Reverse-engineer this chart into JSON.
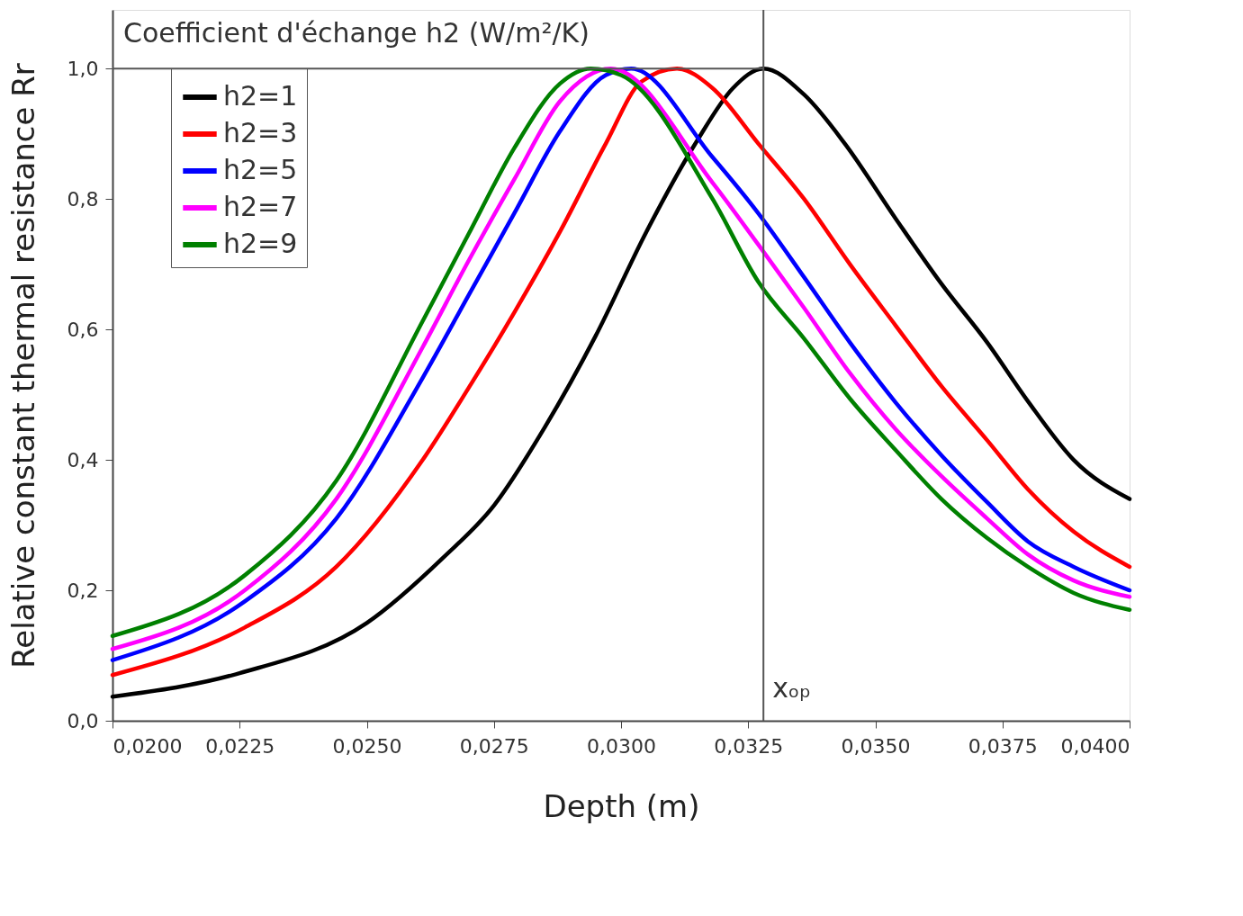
{
  "chart_data": {
    "type": "line",
    "title": "Coefficient d'échange h2 (W/m²/K)",
    "xlabel": "Depth (m)",
    "ylabel": "Relative constant thermal resistance Rr",
    "xlim": [
      0.02,
      0.04
    ],
    "ylim": [
      0,
      1.09
    ],
    "xticks": [
      {
        "value": 0.02,
        "label": "0,0200"
      },
      {
        "value": 0.0225,
        "label": "0,0225"
      },
      {
        "value": 0.025,
        "label": "0,0250"
      },
      {
        "value": 0.0275,
        "label": "0,0275"
      },
      {
        "value": 0.03,
        "label": "0,0300"
      },
      {
        "value": 0.0325,
        "label": "0,0325"
      },
      {
        "value": 0.035,
        "label": "0,0350"
      },
      {
        "value": 0.0375,
        "label": "0,0375"
      },
      {
        "value": 0.04,
        "label": "0,0400"
      }
    ],
    "yticks": [
      {
        "value": 0,
        "label": "0,0"
      },
      {
        "value": 0.2,
        "label": "0,2"
      },
      {
        "value": 0.4,
        "label": "0,4"
      },
      {
        "value": 0.6,
        "label": "0,6"
      },
      {
        "value": 0.8,
        "label": "0,8"
      },
      {
        "value": 1.0,
        "label": "1,0"
      }
    ],
    "grid": false,
    "legend": "top left",
    "line_style": "solid",
    "marker": "none",
    "ref_lines": [
      {
        "axis": "x",
        "value": 0.0328,
        "label": "xₒₚ",
        "color": "#555555"
      },
      {
        "axis": "y",
        "value": 1.0,
        "color": "#555555"
      }
    ],
    "series": [
      {
        "name": "h2=1",
        "color": "#000000",
        "x": [
          0.02,
          0.0225,
          0.025,
          0.0265,
          0.0275,
          0.0285,
          0.0295,
          0.0305,
          0.0315,
          0.0322,
          0.0328,
          0.0336,
          0.0344,
          0.0354,
          0.0363,
          0.0372,
          0.038,
          0.0389,
          0.04
        ],
        "values": [
          0.037,
          0.073,
          0.15,
          0.25,
          0.33,
          0.45,
          0.59,
          0.75,
          0.89,
          0.97,
          1.0,
          0.96,
          0.885,
          0.77,
          0.67,
          0.58,
          0.49,
          0.4,
          0.34
        ]
      },
      {
        "name": "h2=3",
        "color": "#ff0000",
        "x": [
          0.02,
          0.0226,
          0.0244,
          0.0261,
          0.027,
          0.0279,
          0.0288,
          0.0297,
          0.0304,
          0.0311,
          0.0318,
          0.0327,
          0.0336,
          0.0345,
          0.0354,
          0.0363,
          0.0372,
          0.038,
          0.0389,
          0.04
        ],
        "values": [
          0.07,
          0.143,
          0.236,
          0.4,
          0.51,
          0.626,
          0.75,
          0.885,
          0.98,
          1.0,
          0.97,
          0.885,
          0.8,
          0.7,
          0.606,
          0.513,
          0.43,
          0.355,
          0.29,
          0.236
        ]
      },
      {
        "name": "h2=5",
        "color": "#0000ff",
        "x": [
          0.02,
          0.0226,
          0.0244,
          0.0261,
          0.027,
          0.0279,
          0.0288,
          0.0297,
          0.0302,
          0.0318,
          0.0327,
          0.0336,
          0.0345,
          0.0354,
          0.0363,
          0.0372,
          0.038,
          0.0389,
          0.04
        ],
        "values": [
          0.093,
          0.183,
          0.31,
          0.526,
          0.652,
          0.778,
          0.904,
          0.99,
          1.0,
          0.864,
          0.778,
          0.68,
          0.58,
          0.488,
          0.407,
          0.335,
          0.275,
          0.236,
          0.2
        ]
      },
      {
        "name": "h2=7",
        "color": "#ff00ff",
        "x": [
          0.02,
          0.0226,
          0.0244,
          0.0261,
          0.027,
          0.0279,
          0.0288,
          0.0298,
          0.0318,
          0.0327,
          0.0336,
          0.0345,
          0.0354,
          0.0363,
          0.0372,
          0.038,
          0.0389,
          0.04
        ],
        "values": [
          0.11,
          0.2,
          0.34,
          0.573,
          0.705,
          0.83,
          0.95,
          1.0,
          0.825,
          0.73,
          0.633,
          0.533,
          0.447,
          0.375,
          0.31,
          0.255,
          0.215,
          0.19
        ]
      },
      {
        "name": "h2=9",
        "color": "#008000",
        "x": [
          0.02,
          0.0226,
          0.0244,
          0.0261,
          0.027,
          0.0279,
          0.0288,
          0.0294,
          0.03,
          0.0318,
          0.0327,
          0.0336,
          0.0345,
          0.0354,
          0.0363,
          0.0372,
          0.038,
          0.0389,
          0.04
        ],
        "values": [
          0.13,
          0.223,
          0.368,
          0.613,
          0.746,
          0.878,
          0.977,
          1.0,
          0.99,
          0.8,
          0.673,
          0.586,
          0.494,
          0.415,
          0.34,
          0.28,
          0.236,
          0.196,
          0.17
        ]
      }
    ]
  }
}
